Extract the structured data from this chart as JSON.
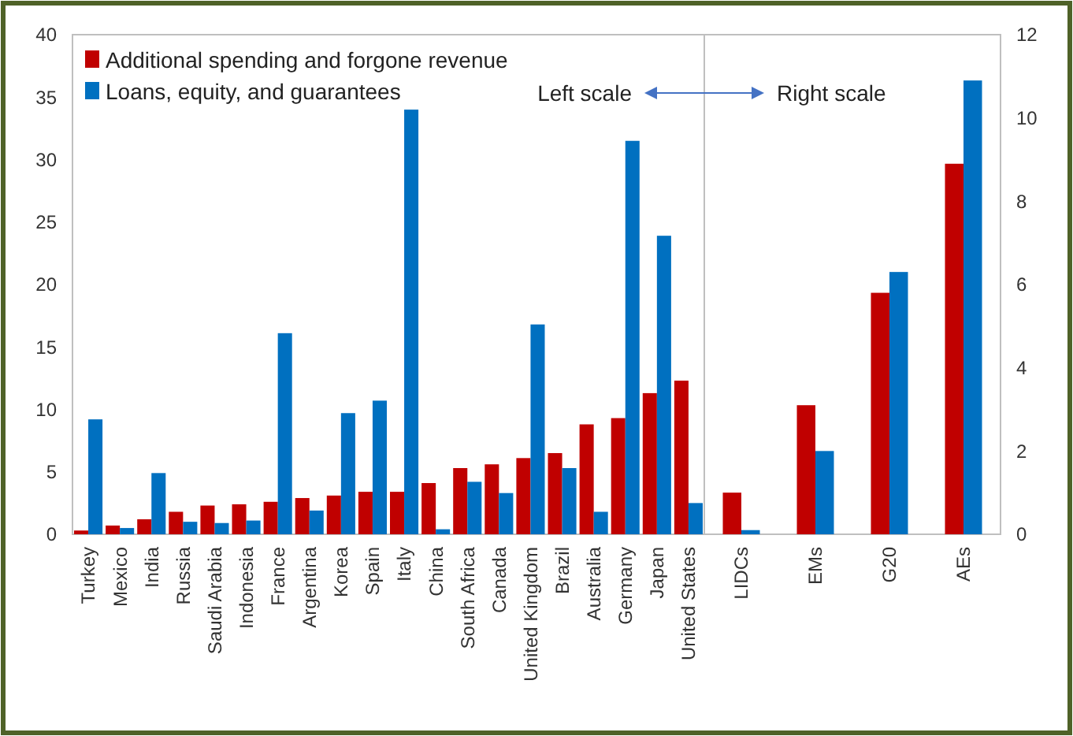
{
  "chart_data": [
    {
      "type": "bar",
      "categories": [
        "Turkey",
        "Mexico",
        "India",
        "Russia",
        "Saudi Arabia",
        "Indonesia",
        "France",
        "Argentina",
        "Korea",
        "Spain",
        "Italy",
        "China",
        "South Africa",
        "Canada",
        "United Kingdom",
        "Brazil",
        "Australia",
        "Germany",
        "Japan",
        "United States"
      ],
      "series": [
        {
          "name": "Additional spending and forgone revenue",
          "color": "#c00000",
          "values": [
            0.3,
            0.7,
            1.2,
            1.8,
            2.3,
            2.4,
            2.6,
            2.9,
            3.1,
            3.4,
            3.4,
            4.1,
            5.3,
            5.6,
            6.1,
            6.5,
            8.8,
            9.3,
            11.3,
            12.3
          ]
        },
        {
          "name": "Loans, equity, and guarantees",
          "color": "#0070c0",
          "values": [
            9.2,
            0.5,
            4.9,
            1.0,
            0.9,
            1.1,
            16.1,
            1.9,
            9.7,
            10.7,
            34.0,
            0.4,
            4.2,
            3.3,
            16.8,
            5.3,
            1.8,
            31.5,
            23.9,
            2.5
          ]
        }
      ],
      "ylim": [
        0,
        40
      ],
      "yticks": [
        0,
        5,
        10,
        15,
        20,
        25,
        30,
        35,
        40
      ],
      "annotations": [
        "Left scale"
      ],
      "legend": "top left"
    },
    {
      "type": "bar",
      "categories": [
        "LIDCs",
        "EMs",
        "G20",
        "AEs"
      ],
      "series": [
        {
          "color": "#c00000",
          "axis": "y2",
          "values": [
            1.0,
            3.1,
            5.8,
            8.9
          ]
        },
        {
          "color": "#0070c0",
          "axis": "y2",
          "values": [
            0.1,
            2.0,
            6.3,
            10.9
          ]
        }
      ],
      "y2lim": [
        0,
        12
      ],
      "y2ticks": [
        0,
        2,
        4,
        6,
        8,
        10,
        12
      ],
      "annotations": [
        "Right scale"
      ]
    }
  ]
}
